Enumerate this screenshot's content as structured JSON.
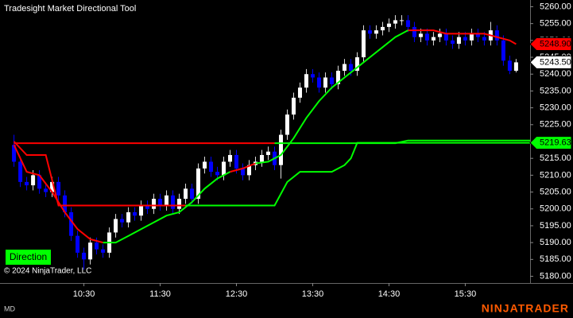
{
  "chart_data": {
    "type": "candlestick",
    "title": "Tradesight Market Directional Tool",
    "x": [
      "09:35",
      "09:40",
      "09:45",
      "09:50",
      "09:55",
      "10:00",
      "10:05",
      "10:10",
      "10:15",
      "10:20",
      "10:25",
      "10:30",
      "10:35",
      "10:40",
      "10:45",
      "10:50",
      "10:55",
      "11:00",
      "11:05",
      "11:10",
      "11:15",
      "11:20",
      "11:25",
      "11:30",
      "11:35",
      "11:40",
      "11:45",
      "11:50",
      "11:55",
      "12:00",
      "12:05",
      "12:10",
      "12:15",
      "12:20",
      "12:25",
      "12:30",
      "12:35",
      "12:40",
      "12:45",
      "12:50",
      "12:55",
      "13:00",
      "13:05",
      "13:10",
      "13:15",
      "13:20",
      "13:25",
      "13:30",
      "13:35",
      "13:40",
      "13:45",
      "13:50",
      "13:55",
      "14:00",
      "14:05",
      "14:10",
      "14:15",
      "14:20",
      "14:25",
      "14:30",
      "14:35",
      "14:40",
      "14:45",
      "14:50",
      "14:55",
      "15:00",
      "15:05",
      "15:10",
      "15:15",
      "15:20",
      "15:25",
      "15:30",
      "15:35",
      "15:40",
      "15:45",
      "15:50",
      "15:55",
      "16:00",
      "16:05",
      "16:10"
    ],
    "open": [
      5219,
      5214,
      5208,
      5207,
      5210,
      5206,
      5205,
      5208,
      5204,
      5199,
      5192,
      5187,
      5185,
      5190,
      5188,
      5187,
      5193,
      5197,
      5196,
      5199,
      5198,
      5201,
      5200,
      5203,
      5201,
      5204,
      5200,
      5203,
      5206,
      5203,
      5212,
      5214,
      5211,
      5210,
      5214,
      5216,
      5212,
      5210,
      5213,
      5214,
      5216,
      5217,
      5213,
      5222,
      5228,
      5233,
      5236,
      5240,
      5239,
      5236,
      5239,
      5237,
      5241,
      5243,
      5241,
      5245,
      5253,
      5252,
      5253,
      5254,
      5255,
      5256,
      5256,
      5254,
      5251,
      5252,
      5250,
      5251,
      5252,
      5250,
      5249,
      5251,
      5250,
      5252,
      5251,
      5250,
      5253,
      5250,
      5244,
      5241
    ],
    "high": [
      5222,
      5215.5,
      5209.5,
      5211.5,
      5211.5,
      5207.5,
      5209.5,
      5209.5,
      5205.5,
      5200.5,
      5193.5,
      5188.5,
      5191.5,
      5191.5,
      5189.5,
      5194.5,
      5198.5,
      5198.5,
      5200.5,
      5200.5,
      5202.5,
      5202.5,
      5204.5,
      5204.5,
      5205.5,
      5205.5,
      5204.5,
      5207.5,
      5207.5,
      5213.5,
      5215.5,
      5215.5,
      5212.5,
      5215.5,
      5217.5,
      5217.5,
      5213.5,
      5214.5,
      5215.5,
      5217.5,
      5218.5,
      5218.5,
      5223.5,
      5229.5,
      5234.5,
      5237.5,
      5241.5,
      5241.5,
      5240.5,
      5240.5,
      5240.5,
      5242.5,
      5244.5,
      5244.5,
      5246.5,
      5254.5,
      5254.5,
      5254.5,
      5255.5,
      5256.5,
      5257.5,
      5257.5,
      5257.5,
      5255.5,
      5253.5,
      5253.5,
      5252.5,
      5253.5,
      5253.5,
      5251.5,
      5252.5,
      5252.5,
      5253.5,
      5253.5,
      5252.5,
      5255.5,
      5254.5,
      5251.5,
      5245.5,
      5244.5
    ],
    "low": [
      5212.5,
      5206.5,
      5205.5,
      5205.5,
      5204.5,
      5203.5,
      5203.5,
      5202.5,
      5197.5,
      5190.5,
      5185.5,
      5182,
      5183.5,
      5186.5,
      5185.5,
      5185.5,
      5191.5,
      5194.5,
      5194.5,
      5196.5,
      5196.5,
      5198.5,
      5198.5,
      5199.5,
      5199.5,
      5198.5,
      5198.5,
      5201.5,
      5201.5,
      5201.5,
      5210.5,
      5209.5,
      5208.5,
      5208.5,
      5212.5,
      5210.5,
      5208.5,
      5208.5,
      5211.5,
      5212.5,
      5214.5,
      5211.5,
      5209,
      5220.5,
      5226.5,
      5231.5,
      5234.5,
      5237.5,
      5234.5,
      5234.5,
      5235.5,
      5235.5,
      5239.5,
      5239.5,
      5239.5,
      5243.5,
      5250.5,
      5250.5,
      5251.5,
      5252.5,
      5253.5,
      5254.5,
      5252.5,
      5249.5,
      5249.5,
      5248.5,
      5248.5,
      5249.5,
      5248.5,
      5247.5,
      5247.5,
      5248.5,
      5248.5,
      5249.5,
      5248.5,
      5248.5,
      5248.5,
      5242.5,
      5240,
      5240.5
    ],
    "close": [
      5214,
      5208,
      5207,
      5210,
      5206,
      5205,
      5208,
      5204,
      5199,
      5192,
      5187,
      5185,
      5190,
      5188,
      5187,
      5193,
      5197,
      5196,
      5199,
      5198,
      5201,
      5200,
      5203,
      5201,
      5204,
      5200,
      5203,
      5206,
      5203,
      5212,
      5214,
      5211,
      5210,
      5214,
      5216,
      5212,
      5210,
      5213,
      5214,
      5216,
      5217,
      5213,
      5222,
      5228,
      5233,
      5236,
      5240,
      5239,
      5236,
      5239,
      5237,
      5241,
      5243,
      5241,
      5245,
      5253,
      5252,
      5253,
      5254,
      5255,
      5256,
      5256,
      5254,
      5251,
      5252,
      5250,
      5251,
      5252,
      5250,
      5249,
      5251,
      5250,
      5252,
      5251,
      5250,
      5253,
      5250,
      5244,
      5241,
      5243.5
    ],
    "up_color": "#ffffff",
    "down_color": "#0000ff",
    "lines": [
      {
        "color": "#ff0000",
        "x": [
          "09:35",
          "09:45",
          "09:55",
          "10:05",
          "10:15",
          "10:25",
          "10:35",
          "10:45",
          "10:55",
          "11:05",
          "11:15",
          "11:25",
          "11:35",
          "11:45",
          "11:55",
          "12:05",
          "12:15",
          "12:25",
          "12:35",
          "12:45",
          "12:55",
          "13:05",
          "13:15",
          "13:25",
          "13:35",
          "13:45",
          "13:55",
          "14:05",
          "14:15",
          "14:25",
          "14:35",
          "14:45",
          "14:55",
          "15:05",
          "15:15",
          "15:25",
          "15:35",
          "15:45",
          "15:55",
          "16:05",
          "16:10"
        ],
        "values": [
          5219,
          5211,
          5210,
          5205,
          5199,
          5194,
          5191,
          5190,
          null,
          null,
          null,
          null,
          null,
          null,
          null,
          null,
          null,
          5211,
          5212,
          5213.5,
          null,
          null,
          null,
          null,
          null,
          null,
          null,
          null,
          null,
          null,
          null,
          5253,
          5253,
          5253,
          5252,
          5252,
          5252,
          5252,
          5251,
          5250,
          5248.9
        ]
      },
      {
        "color": "#00ff00",
        "x": [
          "09:35",
          "09:45",
          "09:55",
          "10:05",
          "10:15",
          "10:25",
          "10:35",
          "10:45",
          "10:55",
          "11:05",
          "11:15",
          "11:25",
          "11:35",
          "11:45",
          "11:55",
          "12:05",
          "12:15",
          "12:25",
          "12:35",
          "12:45",
          "12:55",
          "13:05",
          "13:15",
          "13:25",
          "13:35",
          "13:45",
          "13:55",
          "14:05",
          "14:15",
          "14:25",
          "14:35",
          "14:45",
          "14:55",
          "15:05",
          "15:15",
          "15:25",
          "15:35",
          "15:45",
          "15:55",
          "16:05",
          "16:10"
        ],
        "values": [
          null,
          null,
          null,
          null,
          null,
          null,
          null,
          5190,
          5190,
          5192,
          5194,
          5196,
          5198,
          5199,
          5202,
          5206,
          5209,
          5211,
          null,
          5213.5,
          5214,
          5216,
          5221,
          5227,
          5232,
          5236,
          5239,
          5242,
          5245,
          5248,
          5251,
          5253,
          null,
          null,
          null,
          null,
          null,
          null,
          null,
          null,
          null
        ]
      },
      {
        "color": "#ff0000",
        "x": [
          "09:35",
          "09:45",
          "10:00",
          "10:10",
          "11:50"
        ],
        "values": [
          5220,
          5216,
          5216,
          5201,
          5201
        ]
      },
      {
        "color": "#ff0000",
        "x": [
          "09:35",
          "13:00"
        ],
        "values": [
          5219.5,
          5219.5
        ]
      },
      {
        "color": "#00ff00",
        "x": [
          "11:50",
          "13:00",
          "13:10",
          "13:20",
          "13:45",
          "13:55",
          "14:00",
          "14:05",
          "16:21"
        ],
        "values": [
          5201,
          5201,
          5208,
          5211,
          5211,
          5213,
          5215,
          5219.63,
          5219.63
        ]
      },
      {
        "color": "#00ff00",
        "x": [
          "13:00",
          "14:35",
          "14:45",
          "16:21"
        ],
        "values": [
          5219.5,
          5219.5,
          5220.3,
          5220.3
        ]
      }
    ],
    "xlim": [
      "09:24",
      "16:21"
    ],
    "xticks": [
      "10:30",
      "11:30",
      "12:30",
      "13:30",
      "14:30",
      "15:30"
    ],
    "ylim": [
      5178,
      5262
    ],
    "yticks": [
      {
        "value": 5180,
        "label": "5180.00"
      },
      {
        "value": 5185,
        "label": "5185.00"
      },
      {
        "value": 5190,
        "label": "5190.00"
      },
      {
        "value": 5195,
        "label": "5195.00"
      },
      {
        "value": 5200,
        "label": "5200.00"
      },
      {
        "value": 5205,
        "label": "5205.00"
      },
      {
        "value": 5210,
        "label": "5210.00"
      },
      {
        "value": 5215,
        "label": "5215.00"
      },
      {
        "value": 5220,
        "label": "5220.00"
      },
      {
        "value": 5225,
        "label": "5225.00"
      },
      {
        "value": 5230,
        "label": "5230.00"
      },
      {
        "value": 5235,
        "label": "5235.00"
      },
      {
        "value": 5240,
        "label": "5240.00"
      },
      {
        "value": 5245,
        "label": "5245.00"
      },
      {
        "value": 5250,
        "label": "5250.00"
      },
      {
        "value": 5255,
        "label": "5255.00"
      },
      {
        "value": 5260,
        "label": "5260.00"
      }
    ],
    "price_markers": [
      {
        "value": 5248.9,
        "label": "5248.90",
        "color": "#ff0000"
      },
      {
        "value": 5243.5,
        "label": "5243.50",
        "color": "#ffffff"
      },
      {
        "value": 5219.63,
        "label": "5219.63",
        "color": "#00ff00"
      }
    ],
    "button": "Direction",
    "copyright": "© 2024 NinjaTrader, LLC",
    "mode": "MD",
    "logo": "NINJATRADER"
  }
}
